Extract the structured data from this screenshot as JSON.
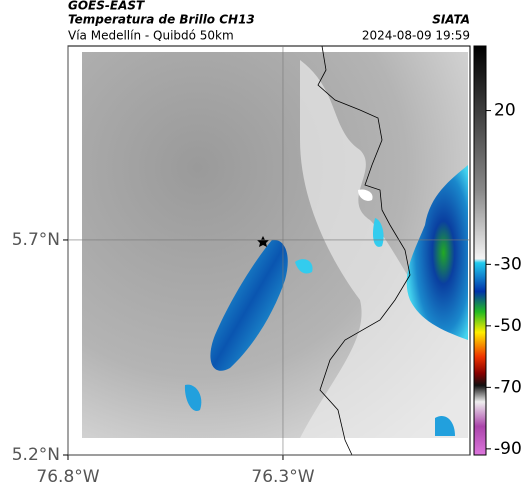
{
  "header": {
    "source": "GOES-EAST",
    "title": "Temperatura de Brillo CH13",
    "subtitle": "Vía Medellín - Quibdó 50km",
    "brand": "SIATA",
    "datetime": "2024-08-09 19:59"
  },
  "map": {
    "xlim": [
      -76.8,
      -75.865
    ],
    "ylim": [
      5.2,
      6.151
    ],
    "xticks": [
      {
        "value": -76.8,
        "label": "76.8°W"
      },
      {
        "value": -76.3,
        "label": "76.3°W"
      }
    ],
    "yticks": [
      {
        "value": 5.7,
        "label": "5.7°N"
      },
      {
        "value": 5.2,
        "label": "5.2°N"
      }
    ]
  },
  "colorbar": {
    "lim": [
      41,
      -92
    ],
    "ticks": [
      20,
      -30,
      -50,
      -70,
      -90
    ]
  }
}
